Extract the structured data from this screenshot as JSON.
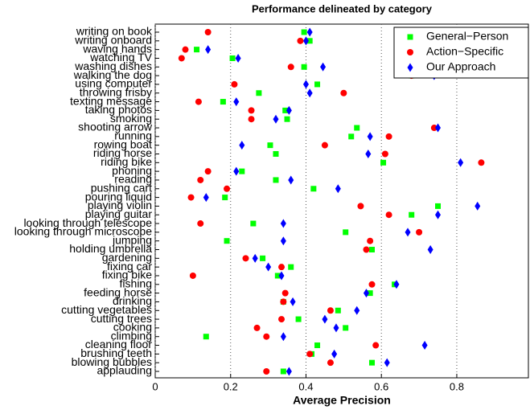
{
  "chart_data": {
    "type": "dot",
    "title": "Performance delineated by category",
    "x_label": "Average Precision",
    "categories": [
      "writing on book",
      "writing onboard",
      "waving hands",
      "watching TV",
      "washing dishes",
      "walking the dog",
      "using computer",
      "throwing frisby",
      "texting message",
      "taking photos",
      "smoking",
      "shooting arrow",
      "running",
      "rowing boat",
      "riding horse",
      "riding bike",
      "phoning",
      "reading",
      "pushing cart",
      "pouring liquid",
      "playing violin",
      "playing guitar",
      "looking through telescope",
      "looking through microscope",
      "jumping",
      "holding umbrella",
      "gardening",
      "fixing car",
      "fixing bike",
      "fishing",
      "feeding horse",
      "drinking",
      "cutting vegetables",
      "cutting trees",
      "cooking",
      "climbing",
      "cleaning floor",
      "brushing teeth",
      "blowing bubbles",
      "applauding"
    ],
    "series": [
      {
        "name": "General−Person",
        "color": "#00ff00",
        "marker": "square",
        "values": [
          0.395,
          0.41,
          0.11,
          0.205,
          0.395,
          0.68,
          0.43,
          0.275,
          0.18,
          0.345,
          0.35,
          0.535,
          0.52,
          0.305,
          0.32,
          0.605,
          0.23,
          0.32,
          0.42,
          0.185,
          0.75,
          0.68,
          0.26,
          0.505,
          0.19,
          0.575,
          0.285,
          0.36,
          0.325,
          0.635,
          0.57,
          0.34,
          0.485,
          0.38,
          0.505,
          0.135,
          0.43,
          0.415,
          0.575,
          0.34
        ]
      },
      {
        "name": "Action−Specific",
        "color": "#ff0000",
        "marker": "circle",
        "values": [
          0.14,
          0.385,
          0.08,
          0.07,
          0.36,
          0.68,
          0.21,
          0.5,
          0.115,
          0.255,
          0.255,
          0.74,
          0.62,
          0.45,
          0.61,
          0.865,
          0.14,
          0.12,
          0.19,
          0.095,
          0.545,
          0.62,
          0.12,
          0.7,
          0.57,
          0.56,
          0.24,
          0.335,
          0.1,
          0.575,
          0.345,
          0.34,
          0.465,
          0.335,
          0.27,
          0.295,
          0.585,
          0.41,
          0.465,
          0.295
        ]
      },
      {
        "name": "Our Approach",
        "color": "#0000ff",
        "marker": "diamond",
        "values": [
          0.41,
          0.4,
          0.14,
          0.22,
          0.445,
          0.74,
          0.4,
          0.41,
          0.215,
          0.355,
          0.32,
          0.75,
          0.57,
          0.23,
          0.565,
          0.81,
          0.215,
          0.36,
          0.485,
          0.135,
          0.855,
          0.75,
          0.34,
          0.67,
          0.34,
          0.73,
          0.265,
          0.3,
          0.335,
          0.64,
          0.56,
          0.365,
          0.535,
          0.45,
          0.48,
          0.34,
          0.715,
          0.475,
          0.615,
          0.355
        ]
      }
    ],
    "xlim": [
      0,
      0.99
    ],
    "xticks": [
      0,
      0.2,
      0.4,
      0.6,
      0.8
    ],
    "grid": true,
    "legend": "upper right"
  }
}
